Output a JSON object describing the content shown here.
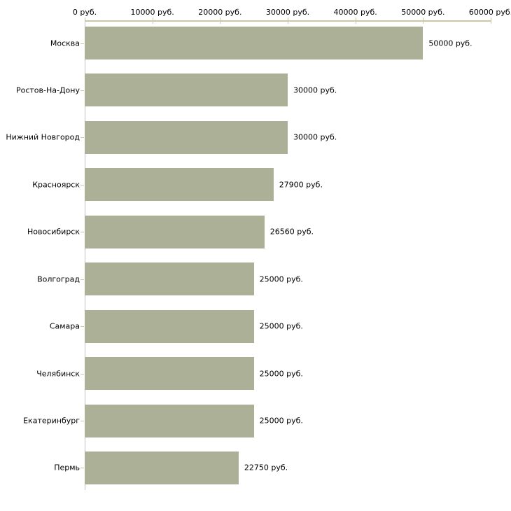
{
  "chart_data": {
    "type": "bar",
    "orientation": "horizontal",
    "title": "",
    "xlabel": "",
    "ylabel": "",
    "categories": [
      "Москва",
      "Ростов-На-Дону",
      "Нижний Новгород",
      "Красноярск",
      "Новосибирск",
      "Волгоград",
      "Самара",
      "Челябинск",
      "Екатеринбург",
      "Пермь"
    ],
    "values": [
      50000,
      30000,
      30000,
      27900,
      26560,
      25000,
      25000,
      25000,
      25000,
      22750
    ],
    "value_labels": [
      "50000 руб.",
      "30000 руб.",
      "30000 руб.",
      "27900 руб.",
      "26560 руб.",
      "25000 руб.",
      "25000 руб.",
      "25000 руб.",
      "25000 руб.",
      "22750 руб."
    ],
    "x_axis": {
      "position": "top",
      "range": [
        0,
        60000
      ],
      "ticks": [
        0,
        10000,
        20000,
        30000,
        40000,
        50000,
        60000
      ],
      "tick_labels": [
        "0 руб.",
        "10000 руб.",
        "20000 руб.",
        "30000 руб.",
        "40000 руб.",
        "50000 руб.",
        "60000 руб."
      ]
    },
    "grid": false,
    "legend": false,
    "colors": {
      "bar": "#abb096",
      "x_axis_line": "#ccc9a2",
      "x_tick": "#ccc9a2",
      "y_axis_line": "#c3c3c3",
      "y_tick": "#ccc9a2",
      "text": "#000000",
      "background": "#ffffff"
    }
  }
}
